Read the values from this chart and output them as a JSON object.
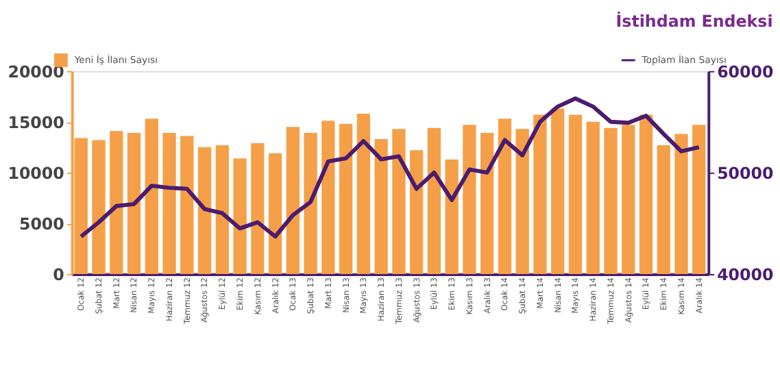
{
  "chart_data": {
    "type": "bar",
    "title": "İstihdam Endeksi",
    "categories": [
      "Ocak 12",
      "Şubat 12",
      "Mart 12",
      "Nisan 12",
      "Mayıs 12",
      "Haziran 12",
      "Temmuz 12",
      "Ağustos 12",
      "Eylül 12",
      "Ekim 12",
      "Kasım 12",
      "Aralık 12",
      "Ocak 13",
      "Şubat 13",
      "Mart 13",
      "Nisan 13",
      "Mayıs 13",
      "Haziran 13",
      "Temmuz 13",
      "Ağustos 13",
      "Eylül 13",
      "Ekim 13",
      "Kasım 13",
      "Aralık 13",
      "Ocak 14",
      "Şubat 14",
      "Mart 14",
      "Nisan 14",
      "Mayıs 14",
      "Haziran 14",
      "Temmuz 14",
      "Ağustos 14",
      "Eylül 14",
      "Ekim 14",
      "Kasım 14",
      "Aralık 14"
    ],
    "series": [
      {
        "name": "Yeni İş İlanı Sayısı",
        "color": "#f5a048",
        "values": [
          13400,
          13200,
          14100,
          13900,
          15300,
          13900,
          13600,
          12500,
          12700,
          11400,
          12900,
          11900,
          14500,
          13900,
          15100,
          14800,
          15800,
          13300,
          14300,
          12200,
          14400,
          11300,
          14700,
          13900,
          15300,
          14300,
          15700,
          16300,
          15700,
          15000,
          14400,
          14700,
          15700,
          12700,
          13800,
          14700
        ]
      },
      {
        "name": "Toplam İlan Sayısı",
        "type": "line",
        "axis": "y2",
        "color": "#4b1c6e",
        "values": [
          43700,
          45100,
          46700,
          46900,
          48700,
          48500,
          48400,
          46400,
          46000,
          44500,
          45100,
          43700,
          45800,
          47100,
          51100,
          51400,
          53100,
          51300,
          51600,
          48400,
          50000,
          47300,
          50300,
          50000,
          53200,
          51700,
          55000,
          56500,
          57300,
          56500,
          55000,
          54900,
          55600,
          53800,
          52100,
          52500
        ]
      }
    ],
    "ylim": [
      0,
      20000
    ],
    "yticks": [
      0,
      5000,
      10000,
      15000,
      20000
    ],
    "y2lim": [
      40000,
      60000
    ],
    "y2ticks": [
      40000,
      50000,
      60000
    ],
    "grid": false,
    "legend": "top",
    "line_style": "solid",
    "marker": "none"
  }
}
